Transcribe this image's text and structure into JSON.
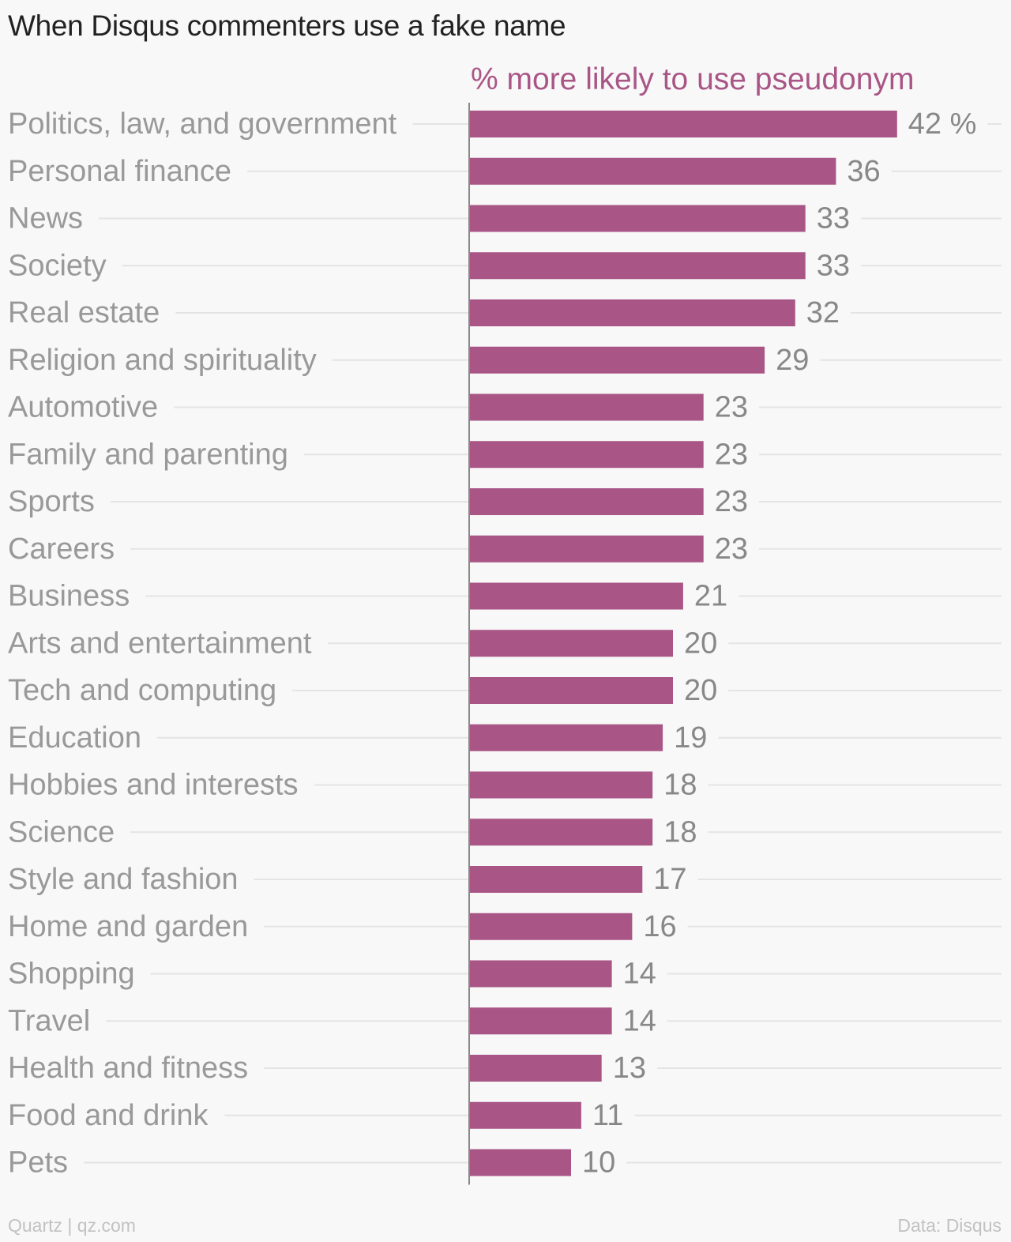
{
  "title": "When Disqus commenters use a fake name",
  "footer": {
    "source_left": "Quartz | qz.com",
    "source_right": "Data: Disqus"
  },
  "colors": {
    "bar": "#a95686",
    "series_label": "#a95686",
    "category_label": "#999999",
    "value_label": "#888888",
    "gridline": "#e4e4e4",
    "axis": "#888888",
    "title": "#222222",
    "footer": "#c2c2c2"
  },
  "chart_data": {
    "type": "bar",
    "orientation": "horizontal",
    "series": [
      {
        "name": "% more likely to use pseudonym",
        "values": [
          42,
          36,
          33,
          33,
          32,
          29,
          23,
          23,
          23,
          23,
          21,
          20,
          20,
          19,
          18,
          18,
          17,
          16,
          14,
          14,
          13,
          11,
          10
        ]
      }
    ],
    "categories": [
      "Politics, law, and government",
      "Personal finance",
      "News",
      "Society",
      "Real estate",
      "Religion and spirituality",
      "Automotive",
      "Family and parenting",
      "Sports",
      "Careers",
      "Business",
      "Arts and entertainment",
      "Tech and computing",
      "Education",
      "Hobbies and interests",
      "Science",
      "Style and fashion",
      "Home and garden",
      "Shopping",
      "Travel",
      "Health and fitness",
      "Food and drink",
      "Pets"
    ],
    "value_labels": [
      "42 %",
      "36",
      "33",
      "33",
      "32",
      "29",
      "23",
      "23",
      "23",
      "23",
      "21",
      "20",
      "20",
      "19",
      "18",
      "18",
      "17",
      "16",
      "14",
      "14",
      "13",
      "11",
      "10"
    ],
    "xlim": [
      0,
      52
    ],
    "grid": false,
    "legend": "top",
    "xlabel": "",
    "ylabel": ""
  }
}
